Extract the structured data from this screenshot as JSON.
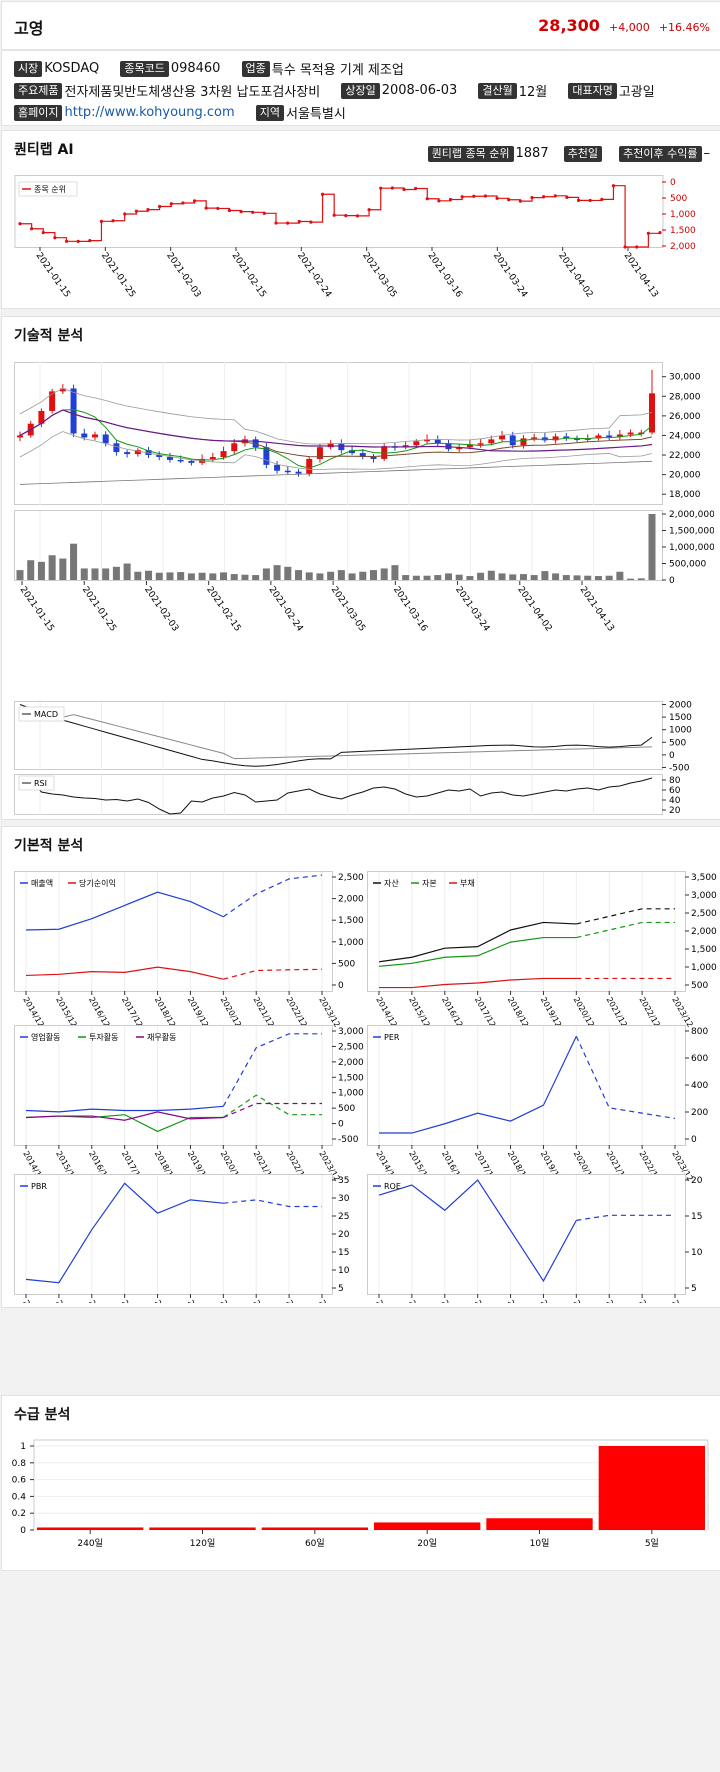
{
  "header": {
    "name": "고영",
    "price": "28,300",
    "change": "+4,000",
    "change_pct": "+16.46%"
  },
  "info": {
    "market_label": "시장",
    "market": "KOSDAQ",
    "code_label": "종목코드",
    "code": "098460",
    "industry_label": "업종",
    "industry": "특수 목적용 기계 제조업",
    "products_label": "주요제품",
    "products": "전자제품및반도체생산용 3차원 납도포검사장비",
    "listing_label": "상장일",
    "listing": "2008-06-03",
    "fiscal_label": "결산월",
    "fiscal": "12월",
    "ceo_label": "대표자명",
    "ceo": "고광일",
    "homepage_label": "홈페이지",
    "homepage": "http://www.kohyoung.com",
    "region_label": "지역",
    "region": "서울특별시"
  },
  "quantilab": {
    "title": "퀀티랩 AI",
    "rank_label": "퀀티랩 종목 순위",
    "rank": "1887",
    "rec_date_label": "추천일",
    "rec_return_label": "추천이후 수익률",
    "rec_return": "–",
    "legend": "종목 순위",
    "y_ticks": [
      "0",
      "500",
      "1,000",
      "1,500",
      "2,000"
    ],
    "x_ticks": [
      "2021-01-15",
      "2021-01-25",
      "2021-02-03",
      "2021-02-15",
      "2021-02-24",
      "2021-03-05",
      "2021-03-16",
      "2021-03-24",
      "2021-04-02",
      "2021-04-13"
    ]
  },
  "technical": {
    "title": "기술적 분석",
    "price_ticks": [
      "30,000",
      "28,000",
      "26,000",
      "24,000",
      "22,000",
      "20,000",
      "18,000"
    ],
    "volume_ticks": [
      "2,000,000",
      "1,500,000",
      "1,000,000",
      "500,000",
      "0"
    ],
    "x_ticks": [
      "2021-01-15",
      "2021-01-25",
      "2021-02-03",
      "2021-02-15",
      "2021-02-24",
      "2021-03-05",
      "2021-03-16",
      "2021-03-24",
      "2021-04-02",
      "2021-04-13"
    ],
    "macd_label": "MACD",
    "macd_ticks": [
      "2000",
      "1500",
      "1000",
      "500",
      "0",
      "-500"
    ],
    "rsi_label": "RSI",
    "rsi_ticks": [
      "80",
      "60",
      "40",
      "20"
    ]
  },
  "fundamental": {
    "title": "기본적 분석",
    "years": [
      "2014/12",
      "2015/12",
      "2016/12",
      "2017/12",
      "2018/12",
      "2019/12",
      "2020/12",
      "2021/12",
      "2022/12",
      "2023/12"
    ],
    "charts": [
      {
        "legend": [
          {
            "name": "매출액",
            "color": "#1f3fd6"
          },
          {
            "name": "당기순이익",
            "color": "#e01010"
          }
        ],
        "ticks": [
          "2,500",
          "2,000",
          "1,500",
          "1,000",
          "500",
          "0"
        ]
      },
      {
        "legend": [
          {
            "name": "자산",
            "color": "#111111"
          },
          {
            "name": "자본",
            "color": "#119911"
          },
          {
            "name": "부채",
            "color": "#e01010"
          }
        ],
        "ticks": [
          "3,500",
          "3,000",
          "2,500",
          "2,000",
          "1,500",
          "1,000",
          "500"
        ]
      },
      {
        "legend": [
          {
            "name": "영업활동",
            "color": "#1f3fd6"
          },
          {
            "name": "투자활동",
            "color": "#119911"
          },
          {
            "name": "재무활동",
            "color": "#880088"
          }
        ],
        "ticks": [
          "3,000",
          "2,500",
          "2,000",
          "1,500",
          "1,000",
          "500",
          "0",
          "-500"
        ]
      },
      {
        "legend": [
          {
            "name": "PER",
            "color": "#1f3fd6"
          }
        ],
        "ticks": [
          "800",
          "600",
          "400",
          "200",
          "0"
        ]
      },
      {
        "legend": [
          {
            "name": "PBR",
            "color": "#1f3fd6"
          }
        ],
        "ticks": [
          "35",
          "30",
          "25",
          "20",
          "15",
          "10",
          "5"
        ]
      },
      {
        "legend": [
          {
            "name": "ROE",
            "color": "#1f3fd6"
          }
        ],
        "ticks": [
          "20",
          "15",
          "10",
          "5"
        ]
      }
    ]
  },
  "supply": {
    "title": "수급 분석",
    "y_ticks": [
      "1",
      "0.8",
      "0.6",
      "0.4",
      "0.2",
      "0"
    ],
    "chart_data": {
      "type": "bar",
      "categories": [
        "240일",
        "120일",
        "60일",
        "20일",
        "10일",
        "5일"
      ],
      "values": [
        0.03,
        0.03,
        0.03,
        0.09,
        0.14,
        1.0
      ],
      "ylim": [
        0,
        1
      ]
    }
  },
  "colors": {
    "up": "#e01010",
    "down": "#1f3fd6",
    "accent": "#d00000"
  }
}
